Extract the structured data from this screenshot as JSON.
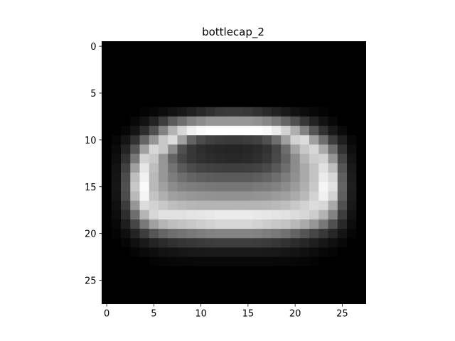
{
  "chart_data": {
    "type": "heatmap",
    "title": "bottlecap_2",
    "colormap": "gray",
    "rows": 28,
    "cols": 28,
    "xlim": [
      -0.5,
      27.5
    ],
    "ylim": [
      27.5,
      -0.5
    ],
    "x_ticks": [
      0,
      5,
      10,
      15,
      20,
      25
    ],
    "y_ticks": [
      0,
      5,
      10,
      15,
      20,
      25
    ],
    "x_tick_labels": [
      "0",
      "5",
      "10",
      "15",
      "20",
      "25"
    ],
    "y_tick_labels": [
      "0",
      "5",
      "10",
      "15",
      "20",
      "25"
    ],
    "value_range": [
      0,
      255
    ],
    "values": [
      [
        0,
        0,
        0,
        0,
        0,
        0,
        0,
        0,
        0,
        0,
        0,
        0,
        0,
        0,
        0,
        0,
        0,
        0,
        0,
        0,
        0,
        0,
        0,
        0,
        0,
        0,
        0,
        0
      ],
      [
        0,
        0,
        0,
        0,
        0,
        0,
        0,
        0,
        0,
        0,
        0,
        0,
        0,
        0,
        0,
        0,
        0,
        0,
        0,
        0,
        0,
        0,
        0,
        0,
        0,
        0,
        0,
        0
      ],
      [
        0,
        0,
        0,
        0,
        0,
        0,
        0,
        0,
        0,
        0,
        0,
        0,
        0,
        0,
        0,
        0,
        0,
        0,
        0,
        0,
        0,
        0,
        0,
        0,
        0,
        0,
        0,
        0
      ],
      [
        0,
        0,
        0,
        0,
        0,
        0,
        0,
        0,
        0,
        0,
        0,
        0,
        0,
        0,
        0,
        0,
        0,
        0,
        0,
        0,
        0,
        0,
        0,
        0,
        0,
        0,
        0,
        0
      ],
      [
        0,
        0,
        0,
        0,
        0,
        0,
        0,
        0,
        0,
        0,
        0,
        0,
        0,
        0,
        0,
        0,
        0,
        0,
        0,
        0,
        0,
        0,
        0,
        0,
        0,
        0,
        0,
        0
      ],
      [
        0,
        0,
        0,
        0,
        0,
        0,
        0,
        0,
        0,
        0,
        0,
        0,
        0,
        0,
        0,
        0,
        0,
        0,
        0,
        0,
        0,
        0,
        0,
        0,
        0,
        0,
        0,
        0
      ],
      [
        0,
        0,
        0,
        0,
        0,
        0,
        0,
        0,
        0,
        0,
        0,
        0,
        0,
        0,
        0,
        0,
        0,
        0,
        0,
        0,
        0,
        0,
        0,
        0,
        0,
        0,
        0,
        0
      ],
      [
        0,
        0,
        0,
        0,
        4,
        8,
        12,
        18,
        24,
        32,
        40,
        48,
        56,
        58,
        58,
        56,
        50,
        42,
        34,
        26,
        18,
        12,
        8,
        4,
        0,
        0,
        0,
        0
      ],
      [
        0,
        0,
        0,
        8,
        18,
        35,
        60,
        90,
        110,
        130,
        140,
        150,
        150,
        150,
        150,
        150,
        145,
        135,
        120,
        100,
        80,
        55,
        35,
        18,
        8,
        0,
        0,
        0
      ],
      [
        0,
        0,
        6,
        20,
        45,
        80,
        130,
        180,
        215,
        240,
        250,
        255,
        255,
        255,
        255,
        255,
        255,
        250,
        235,
        210,
        175,
        130,
        85,
        50,
        25,
        10,
        0,
        0
      ],
      [
        0,
        6,
        20,
        50,
        100,
        150,
        200,
        220,
        160,
        100,
        75,
        65,
        60,
        58,
        58,
        60,
        65,
        80,
        110,
        160,
        210,
        220,
        160,
        110,
        60,
        30,
        8,
        0
      ],
      [
        0,
        10,
        35,
        85,
        160,
        215,
        200,
        140,
        80,
        55,
        45,
        40,
        38,
        36,
        36,
        38,
        42,
        50,
        70,
        110,
        165,
        200,
        215,
        170,
        110,
        50,
        14,
        0
      ],
      [
        0,
        14,
        50,
        120,
        210,
        200,
        150,
        100,
        70,
        55,
        48,
        44,
        42,
        40,
        40,
        42,
        46,
        55,
        72,
        100,
        140,
        180,
        205,
        210,
        150,
        70,
        20,
        0
      ],
      [
        0,
        18,
        65,
        160,
        230,
        190,
        150,
        115,
        90,
        75,
        68,
        65,
        63,
        62,
        62,
        63,
        66,
        74,
        88,
        110,
        140,
        170,
        195,
        225,
        190,
        85,
        25,
        0
      ],
      [
        0,
        20,
        75,
        190,
        240,
        185,
        150,
        125,
        110,
        100,
        95,
        92,
        90,
        90,
        90,
        90,
        94,
        100,
        110,
        125,
        145,
        170,
        195,
        235,
        215,
        95,
        28,
        0
      ],
      [
        0,
        22,
        80,
        200,
        250,
        185,
        160,
        140,
        130,
        125,
        122,
        120,
        118,
        118,
        118,
        118,
        122,
        125,
        130,
        140,
        155,
        175,
        200,
        245,
        225,
        100,
        30,
        0
      ],
      [
        0,
        20,
        75,
        185,
        245,
        195,
        175,
        160,
        155,
        150,
        148,
        146,
        145,
        145,
        145,
        145,
        148,
        150,
        155,
        160,
        170,
        185,
        210,
        240,
        210,
        95,
        28,
        0
      ],
      [
        0,
        16,
        60,
        150,
        220,
        210,
        200,
        190,
        185,
        182,
        180,
        180,
        180,
        180,
        180,
        180,
        180,
        182,
        185,
        190,
        200,
        210,
        220,
        215,
        170,
        80,
        24,
        0
      ],
      [
        0,
        12,
        45,
        110,
        180,
        215,
        225,
        225,
        225,
        228,
        230,
        232,
        235,
        235,
        235,
        235,
        232,
        230,
        228,
        225,
        220,
        215,
        205,
        180,
        130,
        60,
        18,
        0
      ],
      [
        0,
        8,
        30,
        70,
        120,
        160,
        180,
        190,
        195,
        200,
        205,
        210,
        215,
        215,
        215,
        215,
        210,
        205,
        200,
        195,
        185,
        170,
        150,
        120,
        80,
        40,
        12,
        0
      ],
      [
        0,
        4,
        15,
        35,
        60,
        85,
        100,
        110,
        115,
        120,
        125,
        130,
        132,
        132,
        132,
        132,
        130,
        125,
        120,
        112,
        100,
        85,
        70,
        55,
        38,
        20,
        6,
        0
      ],
      [
        0,
        0,
        6,
        15,
        25,
        35,
        42,
        48,
        52,
        55,
        58,
        60,
        62,
        62,
        62,
        62,
        60,
        58,
        55,
        50,
        44,
        38,
        30,
        22,
        15,
        8,
        0,
        0
      ],
      [
        0,
        0,
        0,
        5,
        10,
        14,
        18,
        20,
        22,
        24,
        25,
        26,
        26,
        26,
        26,
        26,
        26,
        25,
        24,
        22,
        19,
        16,
        12,
        8,
        5,
        0,
        0,
        0
      ],
      [
        0,
        0,
        0,
        0,
        0,
        4,
        6,
        7,
        8,
        8,
        9,
        9,
        9,
        9,
        9,
        9,
        9,
        9,
        8,
        8,
        7,
        6,
        4,
        0,
        0,
        0,
        0,
        0
      ],
      [
        0,
        0,
        0,
        0,
        0,
        0,
        0,
        0,
        0,
        0,
        0,
        0,
        0,
        0,
        0,
        0,
        0,
        0,
        0,
        0,
        0,
        0,
        0,
        0,
        0,
        0,
        0,
        0
      ],
      [
        0,
        0,
        0,
        0,
        0,
        0,
        0,
        0,
        0,
        0,
        0,
        0,
        0,
        0,
        0,
        0,
        0,
        0,
        0,
        0,
        0,
        0,
        0,
        0,
        0,
        0,
        0,
        0
      ],
      [
        0,
        0,
        0,
        0,
        0,
        0,
        0,
        0,
        0,
        0,
        0,
        0,
        0,
        0,
        0,
        0,
        0,
        0,
        0,
        0,
        0,
        0,
        0,
        0,
        0,
        0,
        0,
        0
      ],
      [
        0,
        0,
        0,
        0,
        0,
        0,
        0,
        0,
        0,
        0,
        0,
        0,
        0,
        0,
        0,
        0,
        0,
        0,
        0,
        0,
        0,
        0,
        0,
        0,
        0,
        0,
        0,
        0
      ]
    ]
  }
}
